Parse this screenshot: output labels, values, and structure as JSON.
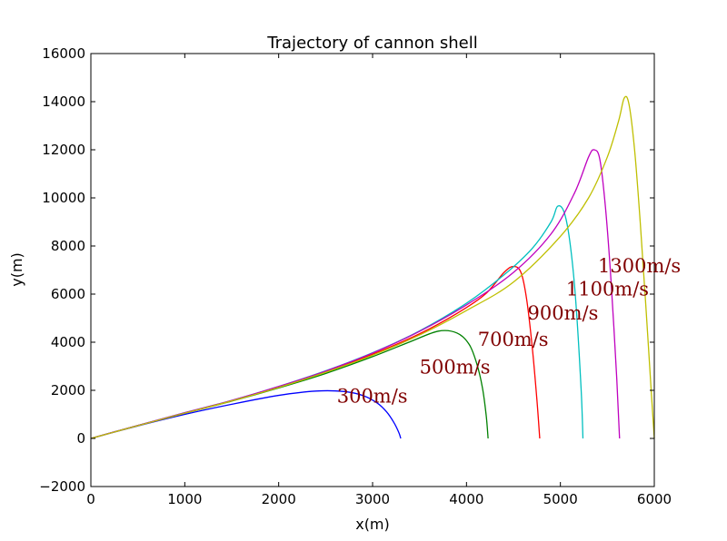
{
  "chart_data": {
    "type": "line",
    "title": "Trajectory of cannon shell",
    "xlabel": "x(m)",
    "ylabel": "y(m)",
    "xlim": [
      0,
      6000
    ],
    "ylim": [
      -2000,
      16000
    ],
    "xticks": [
      0,
      1000,
      2000,
      3000,
      4000,
      5000,
      6000
    ],
    "yticks": [
      -2000,
      0,
      2000,
      4000,
      6000,
      8000,
      10000,
      12000,
      14000,
      16000
    ],
    "xtick_labels": [
      "0",
      "1000",
      "2000",
      "3000",
      "4000",
      "5000",
      "6000"
    ],
    "ytick_labels": [
      "−2000",
      "0",
      "2000",
      "4000",
      "6000",
      "8000",
      "10000",
      "12000",
      "14000",
      "16000"
    ],
    "grid": false,
    "legend": "none",
    "series": [
      {
        "color": "#0000ff",
        "x": [
          0,
          500,
          1000,
          1500,
          2000,
          2400,
          2700,
          2900,
          3050,
          3150,
          3230,
          3280,
          3300
        ],
        "y": [
          0,
          520,
          1000,
          1420,
          1790,
          1970,
          1950,
          1780,
          1470,
          1100,
          640,
          240,
          0
        ]
      },
      {
        "color": "#008000",
        "x": [
          0,
          500,
          1000,
          1500,
          2000,
          2500,
          3000,
          3400,
          3700,
          3900,
          4030,
          4110,
          4170,
          4210,
          4230
        ],
        "y": [
          0,
          540,
          1050,
          1550,
          2100,
          2700,
          3400,
          4020,
          4460,
          4380,
          3900,
          3100,
          2100,
          950,
          0
        ]
      },
      {
        "color": "#ff0000",
        "x": [
          0,
          500,
          1000,
          1500,
          2000,
          2500,
          3000,
          3500,
          3900,
          4200,
          4400,
          4500,
          4580,
          4640,
          4700,
          4750,
          4780
        ],
        "y": [
          0,
          540,
          1060,
          1570,
          2150,
          2790,
          3500,
          4350,
          5200,
          6000,
          6900,
          7150,
          6900,
          5800,
          3800,
          1600,
          0
        ]
      },
      {
        "color": "#00bfbf",
        "x": [
          0,
          500,
          1000,
          1500,
          2000,
          2500,
          3000,
          3500,
          4000,
          4400,
          4700,
          4900,
          4970,
          5040,
          5100,
          5160,
          5220,
          5240
        ],
        "y": [
          0,
          540,
          1070,
          1580,
          2160,
          2810,
          3560,
          4470,
          5620,
          6800,
          7900,
          9000,
          9650,
          9400,
          8200,
          5900,
          2100,
          0
        ]
      },
      {
        "color": "#bf00bf",
        "x": [
          0,
          500,
          1000,
          1500,
          2000,
          2500,
          3000,
          3500,
          4000,
          4500,
          4900,
          5150,
          5300,
          5360,
          5420,
          5480,
          5540,
          5600,
          5630
        ],
        "y": [
          0,
          540,
          1070,
          1580,
          2160,
          2800,
          3550,
          4450,
          5550,
          6900,
          8500,
          10200,
          11700,
          12000,
          11600,
          9600,
          6500,
          2500,
          0
        ]
      },
      {
        "color": "#bfbf00",
        "x": [
          0,
          500,
          1000,
          1500,
          2000,
          2500,
          3000,
          3500,
          4000,
          4500,
          5000,
          5300,
          5500,
          5620,
          5680,
          5730,
          5790,
          5850,
          5910,
          5970,
          6000
        ],
        "y": [
          0,
          530,
          1050,
          1560,
          2120,
          2750,
          3460,
          4300,
          5320,
          6500,
          8400,
          10000,
          11700,
          13200,
          14150,
          13900,
          12000,
          9000,
          5500,
          1800,
          0
        ]
      }
    ],
    "annotations": [
      {
        "text": "300m/s",
        "x": 2620,
        "y": 1500
      },
      {
        "text": "500m/s",
        "x": 3500,
        "y": 2700
      },
      {
        "text": "700m/s",
        "x": 4120,
        "y": 3850
      },
      {
        "text": "900m/s",
        "x": 4650,
        "y": 4950
      },
      {
        "text": "1100m/s",
        "x": 5060,
        "y": 5950
      },
      {
        "text": "1300m/s",
        "x": 5400,
        "y": 6900
      }
    ]
  }
}
